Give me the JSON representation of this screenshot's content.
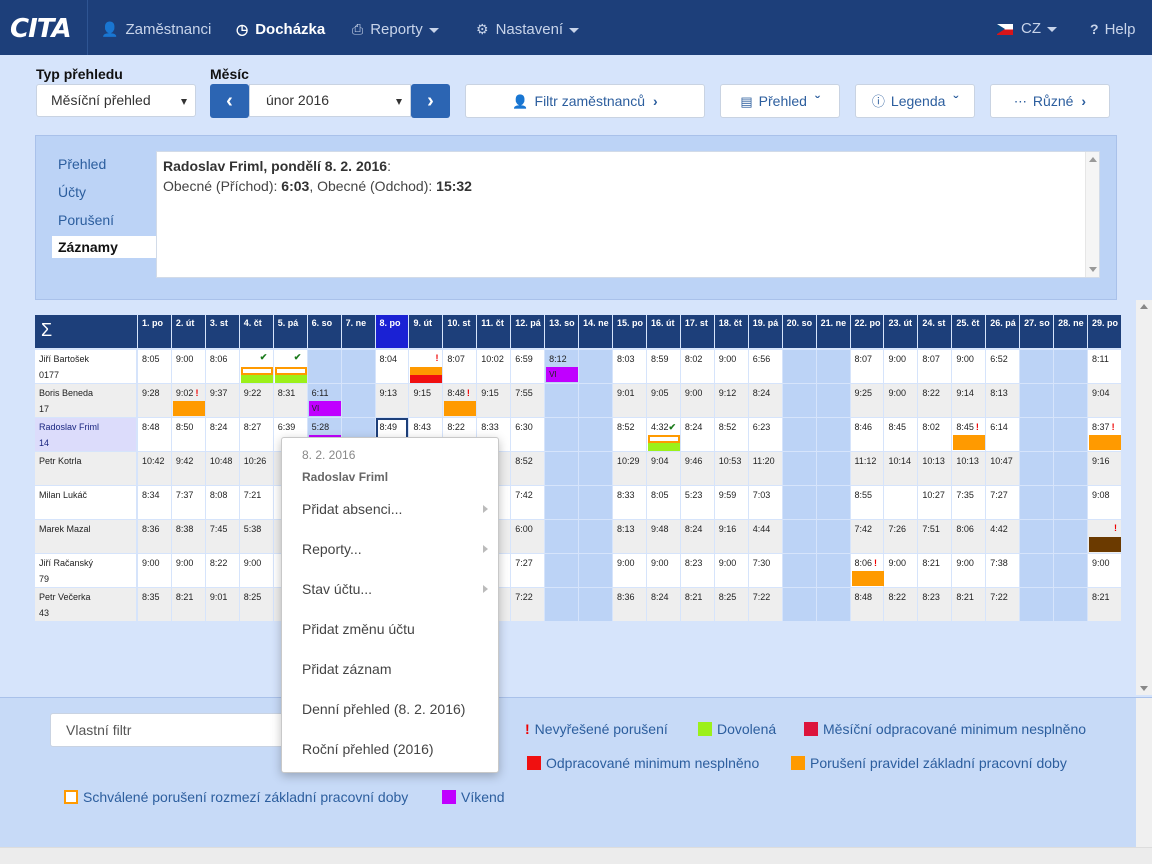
{
  "nav": {
    "logo": "CITA",
    "items": [
      {
        "label": "Zaměstnanci",
        "icon": "user-icon"
      },
      {
        "label": "Docházka",
        "icon": "clock-icon"
      },
      {
        "label": "Reporty",
        "icon": "print-icon"
      },
      {
        "label": "Nastavení",
        "icon": "gear-icon"
      }
    ],
    "language": "CZ",
    "help": "Help"
  },
  "toolbar": {
    "type_label": "Typ přehledu",
    "type_value": "Měsíční přehled",
    "month_label": "Měsíc",
    "month_value": "únor 2016",
    "filter_button": "Filtr zaměstnanců",
    "overview_button": "Přehled",
    "legend_button": "Legenda",
    "misc_button": "Různé"
  },
  "detail": {
    "tabs": [
      "Přehled",
      "Účty",
      "Porušení",
      "Záznamy"
    ],
    "active_tab": "Záznamy",
    "heading_name": "Radoslav Friml, pondělí 8. 2. 2016",
    "heading_colon": ":",
    "line_in_label": "Obecné (Příchod): ",
    "line_in_time": "6:03",
    "line_sep": ", Obecné (Odchod): ",
    "line_out_time": "15:32"
  },
  "grid": {
    "sigma": "Σ",
    "days": [
      "1. po",
      "2. út",
      "3. st",
      "4. čt",
      "5. pá",
      "6. so",
      "7. ne",
      "8. po",
      "9. út",
      "10. st",
      "11. čt",
      "12. pá",
      "13. so",
      "14. ne",
      "15. po",
      "16. út",
      "17. st",
      "18. čt",
      "19. pá",
      "20. so",
      "21. ne",
      "22. po",
      "23. út",
      "24. st",
      "25. čt",
      "26. pá",
      "27. so",
      "28. ne",
      "29. po"
    ],
    "today_index": 7,
    "weekend_indices": [
      5,
      6,
      12,
      13,
      19,
      20,
      26,
      27
    ],
    "employees": [
      {
        "name": "Jiří Bartošek",
        "id": "0177",
        "times": [
          "8:05",
          "9:00",
          "8:06",
          "",
          "",
          "",
          "",
          "8:04",
          "",
          "8:07",
          "10:02",
          "6:59",
          "8:12",
          "",
          "8:03",
          "8:59",
          "8:02",
          "9:00",
          "6:56",
          "",
          "",
          "8:07",
          "9:00",
          "8:07",
          "9:00",
          "6:52",
          "",
          "",
          "8:11"
        ]
      },
      {
        "name": "Boris Beneda",
        "id": "17",
        "times": [
          "9:28",
          "9:02",
          "9:37",
          "9:22",
          "8:31",
          "6:11",
          "",
          "9:13",
          "9:15",
          "8:48",
          "9:15",
          "7:55",
          "",
          "",
          "9:01",
          "9:05",
          "9:00",
          "9:12",
          "8:24",
          "",
          "",
          "9:25",
          "9:00",
          "8:22",
          "9:14",
          "8:13",
          "",
          "",
          "9:04"
        ]
      },
      {
        "name": "Radoslav Friml",
        "id": "14",
        "times": [
          "8:48",
          "8:50",
          "8:24",
          "8:27",
          "6:39",
          "5:28",
          "",
          "8:49",
          "8:43",
          "8:22",
          "8:33",
          "6:30",
          "",
          "",
          "8:52",
          "4:32",
          "8:24",
          "8:52",
          "6:23",
          "",
          "",
          "8:46",
          "8:45",
          "8:02",
          "8:45",
          "6:14",
          "",
          "",
          "8:37"
        ]
      },
      {
        "name": "Petr Kotrla",
        "id": "",
        "times": [
          "10:42",
          "9:42",
          "10:48",
          "10:26",
          "",
          "",
          "",
          "",
          "",
          "",
          "",
          "8:52",
          "",
          "",
          "10:29",
          "9:04",
          "9:46",
          "10:53",
          "11:20",
          "",
          "",
          "11:12",
          "10:14",
          "10:13",
          "10:13",
          "10:47",
          "",
          "",
          "9:16"
        ]
      },
      {
        "name": "Milan Lukáč",
        "id": "",
        "times": [
          "8:34",
          "7:37",
          "8:08",
          "7:21",
          "",
          "",
          "",
          "",
          "",
          "",
          "",
          "7:42",
          "",
          "",
          "8:33",
          "8:05",
          "5:23",
          "9:59",
          "7:03",
          "",
          "",
          "8:55",
          "",
          "10:27",
          "7:35",
          "7:27",
          "",
          "",
          "9:08"
        ]
      },
      {
        "name": "Marek Mazal",
        "id": "",
        "times": [
          "8:36",
          "8:38",
          "7:45",
          "5:38",
          "",
          "",
          "",
          "",
          "",
          "",
          "",
          "6:00",
          "",
          "",
          "8:13",
          "9:48",
          "8:24",
          "9:16",
          "4:44",
          "",
          "",
          "7:42",
          "7:26",
          "7:51",
          "8:06",
          "4:42",
          "",
          "",
          ""
        ]
      },
      {
        "name": "Jiří Račanský",
        "id": "79",
        "times": [
          "9:00",
          "9:00",
          "8:22",
          "9:00",
          "",
          "",
          "",
          "",
          "",
          "",
          "",
          "7:27",
          "",
          "",
          "9:00",
          "9:00",
          "8:23",
          "9:00",
          "7:30",
          "",
          "",
          "8:06",
          "9:00",
          "8:21",
          "9:00",
          "7:38",
          "",
          "",
          "9:00"
        ]
      },
      {
        "name": "Petr Večerka",
        "id": "43",
        "times": [
          "8:35",
          "8:21",
          "9:01",
          "8:25",
          "",
          "",
          "",
          "",
          "",
          "",
          "",
          "7:22",
          "",
          "",
          "8:36",
          "8:24",
          "8:21",
          "8:25",
          "7:22",
          "",
          "",
          "8:48",
          "8:22",
          "8:23",
          "8:21",
          "7:22",
          "",
          "",
          "8:21"
        ]
      }
    ],
    "vi_label": "VI"
  },
  "context_menu": {
    "date": "8. 2. 2016",
    "name": "Radoslav Friml",
    "items": [
      "Přidat absenci...",
      "Reporty...",
      "Stav účtu...",
      "Přidat změnu účtu",
      "Přidat záznam",
      "Denní přehled (8. 2. 2016)",
      "Roční přehled (2016)"
    ]
  },
  "bottom": {
    "filter_placeholder": "Vlastní filtr",
    "legend": [
      {
        "label": "Nevyřešené porušení",
        "marker": "!",
        "color": "#e00000"
      },
      {
        "label": "Dovolená",
        "color": "#9cf01a"
      },
      {
        "label": "Měsíční odpracované minimum nesplněno",
        "color": "#dc143c"
      },
      {
        "label": "Odpracované minimum nesplněno",
        "color": "#f01010"
      },
      {
        "label": "Porušení pravidel základní pracovní doby",
        "color": "#ff9a00"
      },
      {
        "label": "Schválené porušení rozmezí základní pracovní doby",
        "color": "#ff9a00"
      },
      {
        "label": "Víkend",
        "color": "#c000ff"
      }
    ]
  }
}
